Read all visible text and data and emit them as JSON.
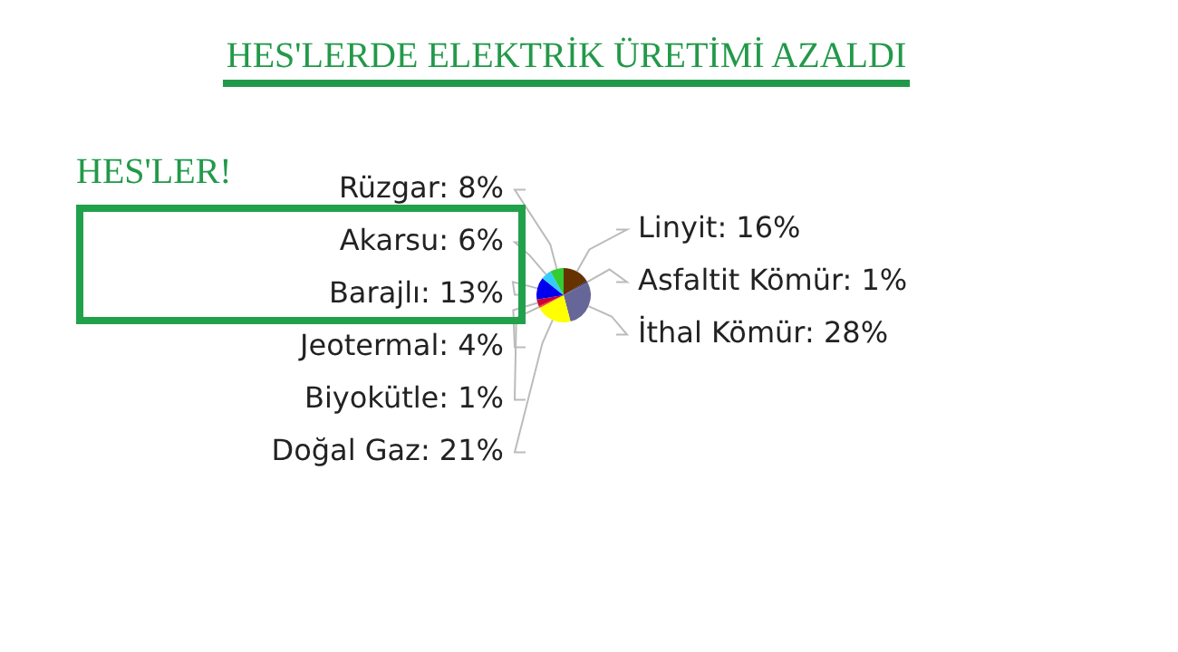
{
  "chart_data": {
    "type": "pie",
    "title": "HES'LERDE ELEKTRİK ÜRETİMİ AZALDI",
    "categories": [
      "Linyit",
      "Asfaltit Kömür",
      "İthal Kömür",
      "Doğal Gaz",
      "Biyokütle",
      "Jeotermal",
      "Barajlı",
      "Akarsu",
      "Rüzgar"
    ],
    "values": [
      16,
      1,
      28,
      21,
      1,
      4,
      13,
      6,
      8
    ],
    "value_labels": [
      "16%",
      "1%",
      "28%",
      "21%",
      "1%",
      "4%",
      "13%",
      "6%",
      "8%"
    ],
    "colors": [
      "#663300",
      "#333366",
      "#666699",
      "#ffff00",
      "#ff3333",
      "#cc0033",
      "#0000ee",
      "#33ccff",
      "#33cc33"
    ],
    "annotations": [
      "HES'LER!"
    ],
    "legend": false
  }
}
